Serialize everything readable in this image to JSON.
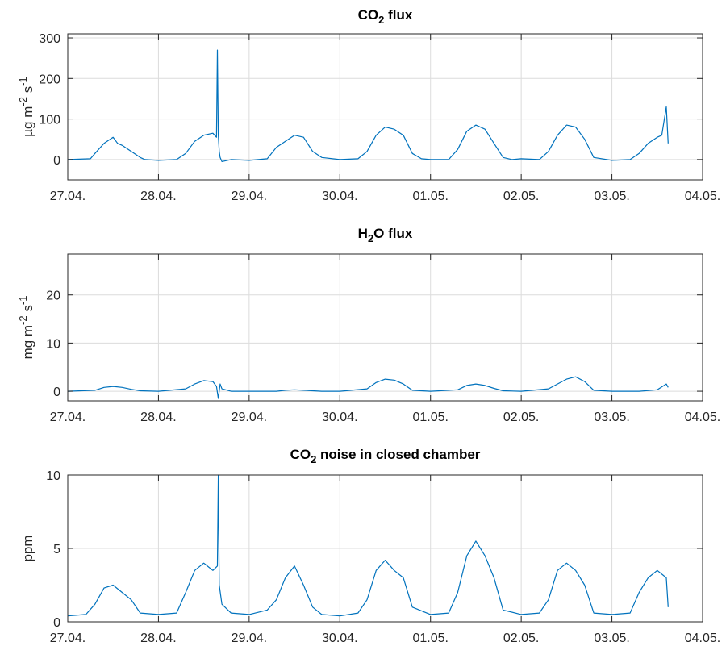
{
  "chart_data": [
    {
      "type": "line",
      "title": {
        "prefix": "CO",
        "sub": "2",
        "suffix": " flux"
      },
      "ylabel": {
        "main": "µg m",
        "sup1": "-2",
        "mid": " s",
        "sup2": "-1"
      },
      "x_tick_labels": [
        "27.04.",
        "28.04.",
        "29.04.",
        "30.04.",
        "01.05.",
        "02.05.",
        "03.05.",
        "04.05."
      ],
      "xlim": [
        0,
        7
      ],
      "ylim": [
        -50,
        310
      ],
      "y_ticks": [
        0,
        100,
        200,
        300
      ],
      "grid": true,
      "series_color": "#0072bd",
      "series": [
        {
          "x": [
            0,
            0.25,
            0.3,
            0.4,
            0.5,
            0.55,
            0.6,
            0.7,
            0.8,
            0.85,
            1.0,
            1.2,
            1.3,
            1.4,
            1.5,
            1.6,
            1.64,
            1.65,
            1.66,
            1.67,
            1.68,
            1.7,
            1.8,
            2.0,
            2.2,
            2.3,
            2.4,
            2.5,
            2.6,
            2.7,
            2.8,
            3.0,
            3.2,
            3.3,
            3.4,
            3.5,
            3.6,
            3.7,
            3.8,
            3.9,
            4.0,
            4.2,
            4.3,
            4.4,
            4.5,
            4.6,
            4.7,
            4.8,
            4.9,
            5.0,
            5.2,
            5.3,
            5.4,
            5.5,
            5.6,
            5.7,
            5.8,
            6.0,
            6.2,
            6.3,
            6.4,
            6.5,
            6.55,
            6.6,
            6.62
          ],
          "y": [
            0,
            2,
            15,
            40,
            55,
            40,
            35,
            20,
            5,
            0,
            -2,
            0,
            15,
            45,
            60,
            65,
            55,
            270,
            60,
            20,
            5,
            -5,
            0,
            -2,
            2,
            30,
            45,
            60,
            55,
            20,
            5,
            0,
            2,
            20,
            60,
            80,
            75,
            60,
            15,
            2,
            0,
            0,
            25,
            70,
            85,
            75,
            40,
            5,
            0,
            2,
            0,
            20,
            60,
            85,
            80,
            50,
            5,
            -2,
            0,
            15,
            40,
            55,
            60,
            130,
            40
          ]
        }
      ]
    },
    {
      "type": "line",
      "title": {
        "prefix": "H",
        "sub": "2",
        "suffix": "O flux"
      },
      "ylabel": {
        "main": "mg m",
        "sup1": "-2",
        "mid": " s",
        "sup2": "-1"
      },
      "x_tick_labels": [
        "27.04.",
        "28.04.",
        "29.04.",
        "30.04.",
        "01.05.",
        "02.05.",
        "03.05.",
        "04.05."
      ],
      "xlim": [
        0,
        7
      ],
      "ylim": [
        -2,
        28.5
      ],
      "y_ticks": [
        0,
        10,
        20
      ],
      "grid": true,
      "series_color": "#0072bd",
      "series": [
        {
          "x": [
            0,
            0.3,
            0.4,
            0.5,
            0.6,
            0.7,
            0.8,
            1.0,
            1.3,
            1.4,
            1.5,
            1.6,
            1.64,
            1.66,
            1.68,
            1.7,
            1.8,
            2.0,
            2.3,
            2.4,
            2.5,
            2.6,
            2.7,
            2.8,
            3.0,
            3.3,
            3.4,
            3.5,
            3.6,
            3.7,
            3.8,
            4.0,
            4.3,
            4.4,
            4.5,
            4.6,
            4.7,
            4.8,
            5.0,
            5.3,
            5.4,
            5.5,
            5.6,
            5.7,
            5.8,
            6.0,
            6.3,
            6.5,
            6.6,
            6.62
          ],
          "y": [
            0,
            0.2,
            0.8,
            1.0,
            0.8,
            0.4,
            0.1,
            0,
            0.5,
            1.5,
            2.2,
            2.0,
            1.0,
            -1.5,
            1.5,
            0.5,
            0,
            0,
            0,
            0.2,
            0.3,
            0.2,
            0.1,
            0,
            0,
            0.5,
            1.8,
            2.5,
            2.3,
            1.5,
            0.2,
            0,
            0.3,
            1.2,
            1.5,
            1.2,
            0.6,
            0.1,
            0,
            0.5,
            1.5,
            2.5,
            3.0,
            2.0,
            0.2,
            0,
            0,
            0.3,
            1.5,
            0.8
          ]
        }
      ]
    },
    {
      "type": "line",
      "title": {
        "prefix": "CO",
        "sub": "2",
        "suffix": " noise in closed chamber"
      },
      "ylabel": {
        "main": "ppm",
        "sup1": "",
        "mid": "",
        "sup2": ""
      },
      "x_tick_labels": [
        "27.04.",
        "28.04.",
        "29.04.",
        "30.04.",
        "01.05.",
        "02.05.",
        "03.05.",
        "04.05."
      ],
      "xlim": [
        0,
        7
      ],
      "ylim": [
        0,
        10
      ],
      "y_ticks": [
        0,
        5,
        10
      ],
      "grid": true,
      "series_color": "#0072bd",
      "series": [
        {
          "x": [
            0,
            0.2,
            0.3,
            0.4,
            0.5,
            0.6,
            0.7,
            0.8,
            1.0,
            1.2,
            1.3,
            1.4,
            1.5,
            1.6,
            1.65,
            1.66,
            1.67,
            1.7,
            1.8,
            2.0,
            2.2,
            2.3,
            2.4,
            2.5,
            2.6,
            2.7,
            2.8,
            3.0,
            3.2,
            3.3,
            3.4,
            3.5,
            3.6,
            3.7,
            3.8,
            4.0,
            4.2,
            4.3,
            4.4,
            4.5,
            4.6,
            4.7,
            4.8,
            5.0,
            5.2,
            5.3,
            5.4,
            5.5,
            5.6,
            5.7,
            5.8,
            6.0,
            6.2,
            6.3,
            6.4,
            6.5,
            6.6,
            6.62
          ],
          "y": [
            0.4,
            0.5,
            1.2,
            2.3,
            2.5,
            2.0,
            1.5,
            0.6,
            0.5,
            0.6,
            2.0,
            3.5,
            4.0,
            3.5,
            3.8,
            10,
            2.5,
            1.2,
            0.6,
            0.5,
            0.8,
            1.5,
            3.0,
            3.8,
            2.5,
            1.0,
            0.5,
            0.4,
            0.6,
            1.5,
            3.5,
            4.2,
            3.5,
            3.0,
            1.0,
            0.5,
            0.6,
            2.0,
            4.5,
            5.5,
            4.5,
            3.0,
            0.8,
            0.5,
            0.6,
            1.5,
            3.5,
            4.0,
            3.5,
            2.5,
            0.6,
            0.5,
            0.6,
            2.0,
            3.0,
            3.5,
            3.0,
            1.0
          ]
        }
      ]
    }
  ]
}
